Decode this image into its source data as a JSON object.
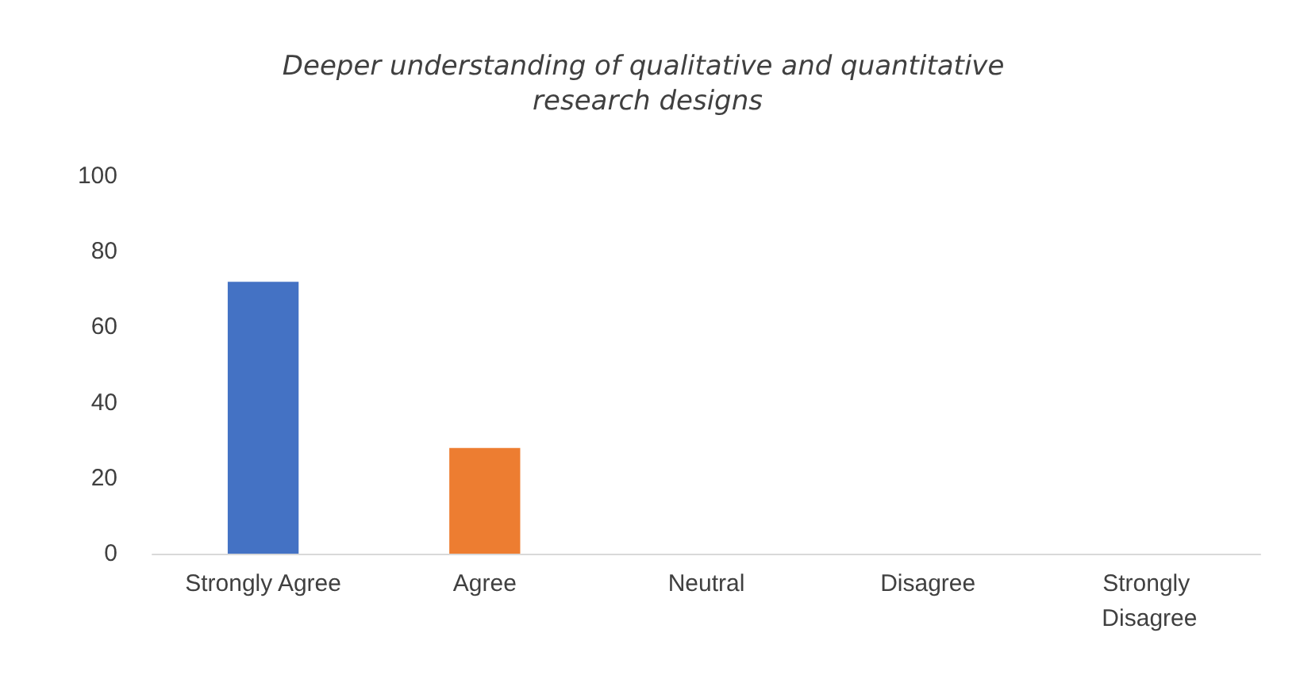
{
  "chart_data": {
    "type": "bar",
    "title": "Deeper understanding of qualitative and quantitative research designs",
    "categories": [
      "Strongly Agree",
      "Agree",
      "Neutral",
      "Disagree",
      "Strongly Disagree"
    ],
    "values": [
      72,
      28,
      0,
      0,
      0
    ],
    "colors": [
      "#4472c4",
      "#ed7d31",
      "#a5a5a5",
      "#ffc000",
      "#5b9bd5"
    ],
    "ylim": [
      0,
      100
    ],
    "yticks": [
      0,
      20,
      40,
      60,
      80,
      100
    ],
    "grid": false
  }
}
